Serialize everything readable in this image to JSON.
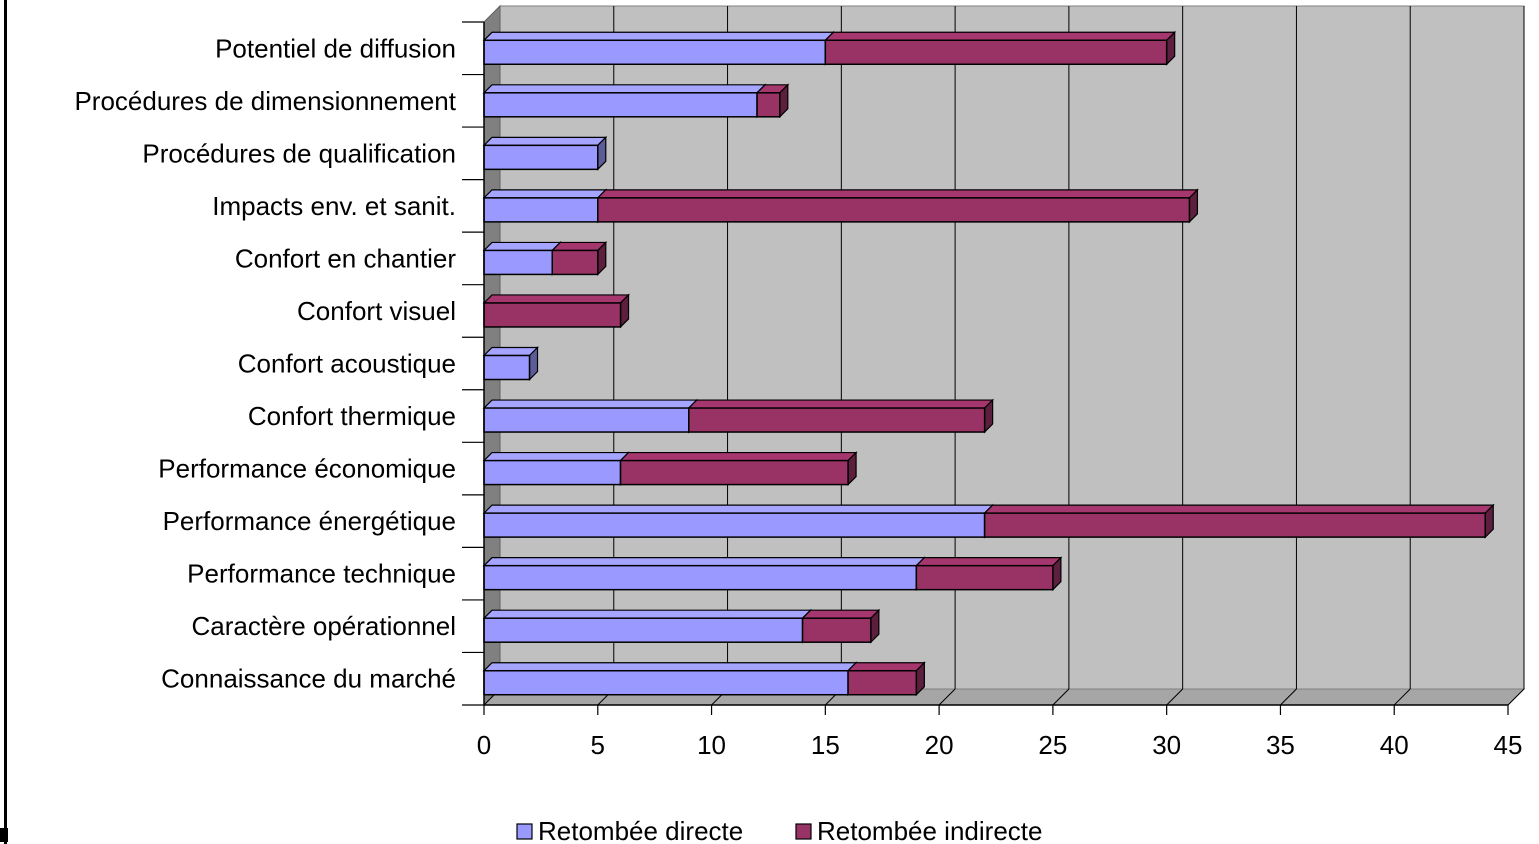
{
  "chart_data": {
    "type": "bar",
    "orientation": "horizontal",
    "stacked": true,
    "three_d": true,
    "categories": [
      "Potentiel de diffusion",
      "Procédures de dimensionnement",
      "Procédures de qualification",
      "Impacts env. et sanit.",
      "Confort en chantier",
      "Confort visuel",
      "Confort acoustique",
      "Confort thermique",
      "Performance économique",
      "Performance énergétique",
      "Performance technique",
      "Caractère opérationnel",
      "Connaissance du marché"
    ],
    "series": [
      {
        "name": "Retombée directe",
        "color": "#9999ff",
        "values": [
          15,
          12,
          5,
          5,
          3,
          0,
          2,
          9,
          6,
          22,
          19,
          14,
          16
        ]
      },
      {
        "name": "Retombée indirecte",
        "color": "#993366",
        "values": [
          15,
          1,
          0,
          26,
          2,
          6,
          0,
          13,
          10,
          22,
          6,
          3,
          3
        ]
      }
    ],
    "xlim": [
      0,
      45
    ],
    "xticks": [
      "0",
      "5",
      "10",
      "15",
      "20",
      "25",
      "30",
      "35",
      "40",
      "45"
    ],
    "grid": true,
    "plot_background": "#c0c0c0",
    "legend_position": "bottom",
    "title": "",
    "xlabel": "",
    "ylabel": ""
  }
}
